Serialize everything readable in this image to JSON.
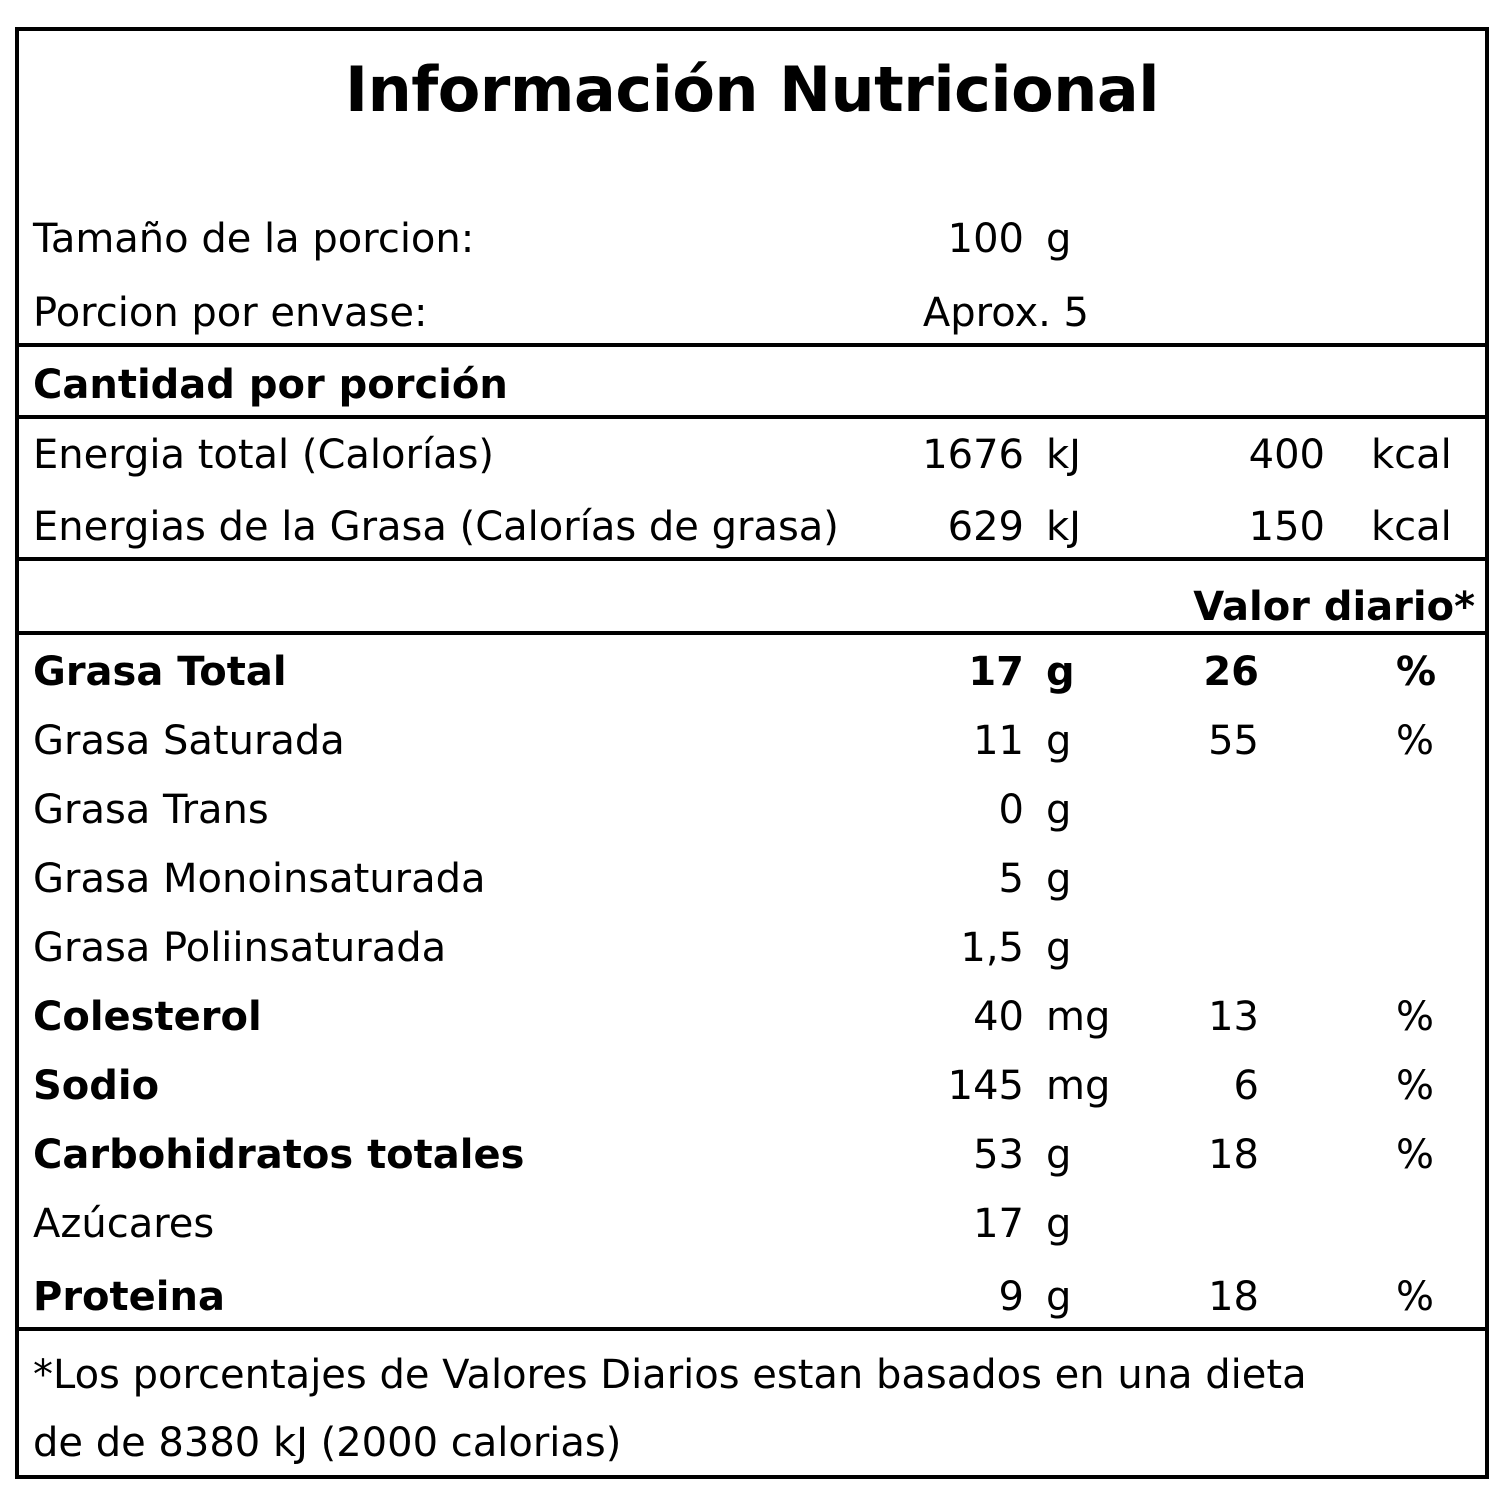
{
  "title": "Información Nutricional",
  "serving": {
    "size_label": "Tamaño de la porcion:",
    "size_value": "100",
    "size_unit": "g",
    "per_container_label": "Porcion por envase:",
    "per_container_value": "Aprox. 5"
  },
  "amount_header": "Cantidad por porción",
  "energy": [
    {
      "label": "Energia total (Calorías)",
      "kj": "1676",
      "kj_unit": "kJ",
      "kcal": "400",
      "kcal_unit": "kcal"
    },
    {
      "label": "Energias de la Grasa (Calorías de grasa)",
      "kj": "629",
      "kj_unit": "kJ",
      "kcal": "150",
      "kcal_unit": "kcal"
    }
  ],
  "daily_value_header": "Valor diario*",
  "nutrients": [
    {
      "label": "Grasa Total",
      "bold": true,
      "amount": "17",
      "unit": "g",
      "dv": "26",
      "dv_unit": "%"
    },
    {
      "label": "Grasa Saturada",
      "bold": false,
      "amount": "11",
      "unit": "g",
      "dv": "55",
      "dv_unit": "%"
    },
    {
      "label": "Grasa Trans",
      "bold": false,
      "amount": "0",
      "unit": "g",
      "dv": "",
      "dv_unit": ""
    },
    {
      "label": "Grasa Monoinsaturada",
      "bold": false,
      "amount": "5",
      "unit": "g",
      "dv": "",
      "dv_unit": ""
    },
    {
      "label": "Grasa Poliinsaturada",
      "bold": false,
      "amount": "1,5",
      "unit": "g",
      "dv": "",
      "dv_unit": ""
    },
    {
      "label": "Colesterol",
      "bold": true,
      "amount": "40",
      "unit": "mg",
      "dv": "13",
      "dv_unit": "%"
    },
    {
      "label": "Sodio",
      "bold": true,
      "amount": "145",
      "unit": "mg",
      "dv": "6",
      "dv_unit": "%"
    },
    {
      "label": "Carbohidratos totales",
      "bold": true,
      "amount": "53",
      "unit": "g",
      "dv": "18",
      "dv_unit": "%"
    },
    {
      "label": "Azúcares",
      "bold": false,
      "amount": "17",
      "unit": "g",
      "dv": "",
      "dv_unit": ""
    },
    {
      "label": "Proteina",
      "bold": true,
      "amount": "9",
      "unit": "g",
      "dv": "18",
      "dv_unit": "%"
    }
  ],
  "footnote_line1": "*Los porcentajes de Valores Diarios estan basados en una dieta",
  "footnote_line2": "de de 8380 kJ (2000 calorias)"
}
